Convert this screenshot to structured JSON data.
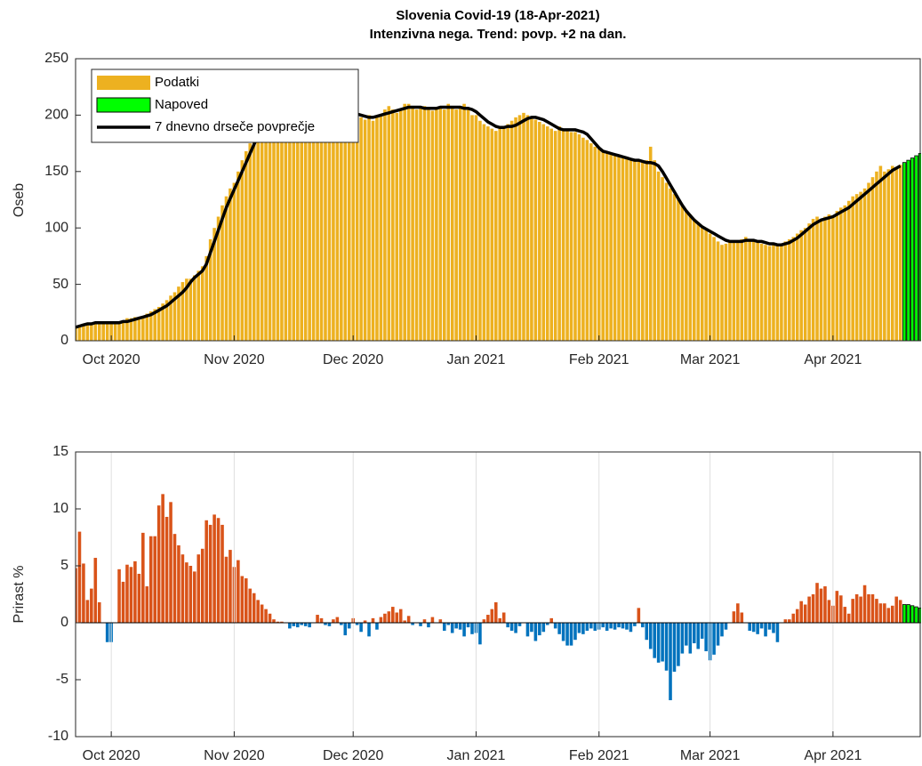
{
  "chart_data": [
    {
      "type": "bar",
      "title": [
        "Slovenia Covid-19 (18-Apr-2021)",
        "Intenzivna nega. Trend: povp. +2 na dan."
      ],
      "ylabel": "Oseb",
      "xlim": [
        "2020-09-22",
        "2021-04-23"
      ],
      "xticks": [
        {
          "value": "2020-10-01",
          "label": "Oct 2020"
        },
        {
          "value": "2020-11-01",
          "label": "Nov 2020"
        },
        {
          "value": "2020-12-01",
          "label": "Dec 2020"
        },
        {
          "value": "2021-01-01",
          "label": "Jan 2021"
        },
        {
          "value": "2021-02-01",
          "label": "Feb 2021"
        },
        {
          "value": "2021-03-01",
          "label": "Mar 2021"
        },
        {
          "value": "2021-04-01",
          "label": "Apr 2021"
        }
      ],
      "ylim": [
        0,
        250
      ],
      "yticks": [
        0,
        50,
        100,
        150,
        200,
        250
      ],
      "legend": "upper left",
      "x": [
        "2020-09-22",
        "2020-09-23",
        "2020-09-24",
        "2020-09-25",
        "2020-09-26",
        "2020-09-27",
        "2020-09-28",
        "2020-09-29",
        "2020-09-30",
        "2020-10-01",
        "2020-10-02",
        "2020-10-03",
        "2020-10-04",
        "2020-10-05",
        "2020-10-06",
        "2020-10-07",
        "2020-10-08",
        "2020-10-09",
        "2020-10-10",
        "2020-10-11",
        "2020-10-12",
        "2020-10-13",
        "2020-10-14",
        "2020-10-15",
        "2020-10-16",
        "2020-10-17",
        "2020-10-18",
        "2020-10-19",
        "2020-10-20",
        "2020-10-21",
        "2020-10-22",
        "2020-10-23",
        "2020-10-24",
        "2020-10-25",
        "2020-10-26",
        "2020-10-27",
        "2020-10-28",
        "2020-10-29",
        "2020-10-30",
        "2020-10-31",
        "2020-11-01",
        "2020-11-02",
        "2020-11-03",
        "2020-11-04",
        "2020-11-05",
        "2020-11-06",
        "2020-11-07",
        "2020-11-08",
        "2020-11-09",
        "2020-11-10",
        "2020-11-11",
        "2020-11-12",
        "2020-11-13",
        "2020-11-14",
        "2020-11-15",
        "2020-11-16",
        "2020-11-17",
        "2020-11-18",
        "2020-11-19",
        "2020-11-20",
        "2020-11-21",
        "2020-11-22",
        "2020-11-23",
        "2020-11-24",
        "2020-11-25",
        "2020-11-26",
        "2020-11-27",
        "2020-11-28",
        "2020-11-29",
        "2020-11-30",
        "2020-12-01",
        "2020-12-02",
        "2020-12-03",
        "2020-12-04",
        "2020-12-05",
        "2020-12-06",
        "2020-12-07",
        "2020-12-08",
        "2020-12-09",
        "2020-12-10",
        "2020-12-11",
        "2020-12-12",
        "2020-12-13",
        "2020-12-14",
        "2020-12-15",
        "2020-12-16",
        "2020-12-17",
        "2020-12-18",
        "2020-12-19",
        "2020-12-20",
        "2020-12-21",
        "2020-12-22",
        "2020-12-23",
        "2020-12-24",
        "2020-12-25",
        "2020-12-26",
        "2020-12-27",
        "2020-12-28",
        "2020-12-29",
        "2020-12-30",
        "2020-12-31",
        "2021-01-01",
        "2021-01-02",
        "2021-01-03",
        "2021-01-04",
        "2021-01-05",
        "2021-01-06",
        "2021-01-07",
        "2021-01-08",
        "2021-01-09",
        "2021-01-10",
        "2021-01-11",
        "2021-01-12",
        "2021-01-13",
        "2021-01-14",
        "2021-01-15",
        "2021-01-16",
        "2021-01-17",
        "2021-01-18",
        "2021-01-19",
        "2021-01-20",
        "2021-01-21",
        "2021-01-22",
        "2021-01-23",
        "2021-01-24",
        "2021-01-25",
        "2021-01-26",
        "2021-01-27",
        "2021-01-28",
        "2021-01-29",
        "2021-01-30",
        "2021-01-31",
        "2021-02-01",
        "2021-02-02",
        "2021-02-03",
        "2021-02-04",
        "2021-02-05",
        "2021-02-06",
        "2021-02-07",
        "2021-02-08",
        "2021-02-09",
        "2021-02-10",
        "2021-02-11",
        "2021-02-12",
        "2021-02-13",
        "2021-02-14",
        "2021-02-15",
        "2021-02-16",
        "2021-02-17",
        "2021-02-18",
        "2021-02-19",
        "2021-02-20",
        "2021-02-21",
        "2021-02-22",
        "2021-02-23",
        "2021-02-24",
        "2021-02-25",
        "2021-02-26",
        "2021-02-27",
        "2021-02-28",
        "2021-03-01",
        "2021-03-02",
        "2021-03-03",
        "2021-03-04",
        "2021-03-05",
        "2021-03-06",
        "2021-03-07",
        "2021-03-08",
        "2021-03-09",
        "2021-03-10",
        "2021-03-11",
        "2021-03-12",
        "2021-03-13",
        "2021-03-14",
        "2021-03-15",
        "2021-03-16",
        "2021-03-17",
        "2021-03-18",
        "2021-03-19",
        "2021-03-20",
        "2021-03-21",
        "2021-03-22",
        "2021-03-23",
        "2021-03-24",
        "2021-03-25",
        "2021-03-26",
        "2021-03-27",
        "2021-03-28",
        "2021-03-29",
        "2021-03-30",
        "2021-03-31",
        "2021-04-01",
        "2021-04-02",
        "2021-04-03",
        "2021-04-04",
        "2021-04-05",
        "2021-04-06",
        "2021-04-07",
        "2021-04-08",
        "2021-04-09",
        "2021-04-10",
        "2021-04-11",
        "2021-04-12",
        "2021-04-13",
        "2021-04-14",
        "2021-04-15",
        "2021-04-16",
        "2021-04-17",
        "2021-04-18"
      ],
      "series": [
        {
          "name": "Podatki",
          "color": "#edb120",
          "values": [
            12,
            14,
            15,
            16,
            16,
            15,
            15,
            16,
            17,
            16,
            15,
            16,
            17,
            20,
            20,
            21,
            21,
            22,
            24,
            26,
            28,
            30,
            33,
            36,
            40,
            43,
            48,
            52,
            55,
            55,
            58,
            62,
            66,
            75,
            90,
            100,
            110,
            120,
            128,
            135,
            140,
            150,
            160,
            168,
            175,
            180,
            188,
            192,
            195,
            200,
            205,
            205,
            200,
            198,
            195,
            200,
            205,
            203,
            200,
            198,
            200,
            202,
            205,
            200,
            198,
            200,
            195,
            200,
            202,
            205,
            200,
            202,
            198,
            196,
            200,
            195,
            198,
            200,
            205,
            208,
            205,
            202,
            205,
            210,
            210,
            208,
            205,
            207,
            208,
            206,
            204,
            207,
            208,
            205,
            210,
            207,
            205,
            208,
            210,
            205,
            200,
            200,
            195,
            192,
            190,
            188,
            186,
            188,
            190,
            192,
            195,
            198,
            200,
            202,
            200,
            198,
            196,
            194,
            192,
            190,
            188,
            186,
            190,
            188,
            186,
            185,
            185,
            183,
            180,
            178,
            175,
            172,
            170,
            168,
            166,
            165,
            164,
            163,
            162,
            162,
            161,
            160,
            159,
            158,
            160,
            172,
            160,
            150,
            145,
            140,
            135,
            130,
            125,
            120,
            115,
            112,
            108,
            105,
            100,
            98,
            95,
            92,
            88,
            85,
            86,
            88,
            87,
            88,
            90,
            92,
            90,
            89,
            88,
            86,
            85,
            84,
            85,
            84,
            86,
            88,
            90,
            92,
            95,
            98,
            100,
            104,
            108,
            110,
            108,
            110,
            112,
            110,
            115,
            118,
            120,
            124,
            128,
            130,
            132,
            135,
            140,
            145,
            150,
            155,
            150,
            152,
            155,
            153,
            156
          ]
        },
        {
          "name": "Napoved",
          "color": "#00ff00",
          "x": [
            "2021-04-19",
            "2021-04-20",
            "2021-04-21",
            "2021-04-22",
            "2021-04-23"
          ],
          "values": [
            158,
            160,
            162,
            164,
            166
          ]
        },
        {
          "name": "7 dnevno drseče povprečje",
          "type": "line",
          "color": "#000000",
          "values": [
            12,
            13,
            14,
            15,
            15,
            16,
            16,
            16,
            16,
            16,
            16,
            16,
            17,
            17,
            18,
            19,
            20,
            21,
            22,
            23,
            25,
            27,
            29,
            31,
            34,
            37,
            40,
            43,
            47,
            52,
            56,
            59,
            62,
            68,
            78,
            88,
            98,
            108,
            118,
            126,
            134,
            142,
            150,
            158,
            166,
            174,
            182,
            188,
            194,
            198,
            200,
            201,
            202,
            202,
            201,
            200,
            200,
            200,
            200,
            200,
            200,
            200,
            200,
            199,
            198,
            198,
            199,
            200,
            200,
            200,
            201,
            201,
            200,
            199,
            198,
            198,
            199,
            200,
            201,
            202,
            203,
            204,
            205,
            206,
            207,
            207,
            207,
            207,
            206,
            206,
            206,
            206,
            207,
            207,
            207,
            207,
            207,
            207,
            206,
            206,
            205,
            203,
            200,
            197,
            194,
            192,
            190,
            189,
            189,
            190,
            190,
            191,
            193,
            195,
            197,
            198,
            198,
            197,
            196,
            194,
            192,
            190,
            188,
            187,
            187,
            187,
            187,
            186,
            185,
            183,
            179,
            175,
            171,
            168,
            167,
            166,
            165,
            164,
            163,
            162,
            161,
            160,
            160,
            159,
            158,
            158,
            157,
            155,
            150,
            144,
            138,
            132,
            126,
            120,
            115,
            111,
            107,
            104,
            101,
            99,
            97,
            95,
            93,
            91,
            89,
            88,
            88,
            88,
            88,
            89,
            89,
            89,
            88,
            88,
            87,
            86,
            86,
            85,
            85,
            86,
            87,
            89,
            91,
            94,
            97,
            100,
            103,
            105,
            107,
            108,
            109,
            110,
            112,
            114,
            116,
            118,
            121,
            124,
            127,
            130,
            133,
            136,
            139,
            142,
            145,
            148,
            151,
            153,
            155
          ]
        }
      ]
    },
    {
      "type": "bar",
      "ylabel": "Prirast %",
      "xlim": [
        "2020-09-22",
        "2021-04-23"
      ],
      "xticks": [
        {
          "value": "2020-10-01",
          "label": "Oct 2020"
        },
        {
          "value": "2020-11-01",
          "label": "Nov 2020"
        },
        {
          "value": "2020-12-01",
          "label": "Dec 2020"
        },
        {
          "value": "2021-01-01",
          "label": "Jan 2021"
        },
        {
          "value": "2021-02-01",
          "label": "Feb 2021"
        },
        {
          "value": "2021-03-01",
          "label": "Mar 2021"
        },
        {
          "value": "2021-04-01",
          "label": "Apr 2021"
        }
      ],
      "ylim": [
        -10,
        15
      ],
      "yticks": [
        -10,
        -5,
        0,
        5,
        10,
        15
      ],
      "grid": "x",
      "color": "#d95319",
      "negative_color": "#0072bd",
      "values": [
        4.8,
        8,
        5.2,
        2,
        3,
        5.7,
        1.8,
        0,
        -1.7,
        -1.7,
        0,
        4.7,
        3.6,
        5.1,
        4.9,
        5.4,
        4.3,
        7.9,
        3.2,
        7.6,
        7.6,
        10.3,
        11.3,
        9.3,
        10.6,
        7.8,
        6.8,
        6,
        5.3,
        5,
        4.5,
        6,
        6.5,
        9,
        8.6,
        9.5,
        9.2,
        8.6,
        5.8,
        6.4,
        4.9,
        5.5,
        4.1,
        3.9,
        3,
        2.6,
        2,
        1.6,
        1.2,
        0.8,
        0.3,
        0.1,
        0.1,
        0,
        -0.5,
        -0.3,
        -0.4,
        -0.2,
        -0.3,
        -0.4,
        0,
        0.7,
        0.4,
        -0.2,
        -0.3,
        0.3,
        0.5,
        -0.2,
        -1.1,
        -0.5,
        0.4,
        -0.2,
        -0.8,
        0.2,
        -1.2,
        0.4,
        -0.6,
        0.5,
        0.8,
        1,
        1.4,
        0.9,
        1.2,
        0.2,
        0.6,
        -0.2,
        0,
        -0.3,
        0.3,
        -0.4,
        0.5,
        0,
        0.3,
        -0.7,
        -0.2,
        -0.9,
        -0.5,
        -0.6,
        -1.2,
        -0.4,
        -1,
        -0.9,
        -1.9,
        0.3,
        0.7,
        1.2,
        1.8,
        0.4,
        0.9,
        -0.4,
        -0.7,
        -0.9,
        -0.3,
        0,
        -1.2,
        -0.8,
        -1.6,
        -1.1,
        -0.8,
        -0.2,
        0.4,
        -0.5,
        -1,
        -1.6,
        -2,
        -2,
        -1.5,
        -0.9,
        -1,
        -0.7,
        -0.5,
        -0.7,
        -0.6,
        -0.4,
        -0.7,
        -0.5,
        -0.6,
        -0.4,
        -0.5,
        -0.6,
        -0.8,
        -0.3,
        1.3,
        -0.4,
        -1.5,
        -2.3,
        -3.1,
        -3.5,
        -3.4,
        -4.2,
        -6.8,
        -4.3,
        -3.8,
        -2.7,
        -2,
        -2.7,
        -1.8,
        -2.3,
        -1.4,
        -2.5,
        -3.3,
        -2.8,
        -2,
        -1.2,
        -0.6,
        0,
        1,
        1.7,
        0.9,
        0,
        -0.7,
        -0.8,
        -1,
        -0.5,
        -1.2,
        -0.6,
        -0.9,
        -1.7,
        0,
        0.3,
        0.3,
        0.8,
        1.2,
        1.9,
        1.6,
        2.3,
        2.5,
        3.5,
        3,
        3.2,
        2,
        1.5,
        2.8,
        2.4,
        1.4,
        0.8,
        2.1,
        2.5,
        2.3,
        3.3,
        2.5,
        2.5,
        2.1,
        1.7,
        1.7,
        1.3,
        1.5,
        2.3,
        2
      ],
      "forecast": {
        "color": "#00ff00",
        "values": [
          1.6,
          1.6,
          1.5,
          1.4,
          1.3
        ]
      }
    }
  ]
}
